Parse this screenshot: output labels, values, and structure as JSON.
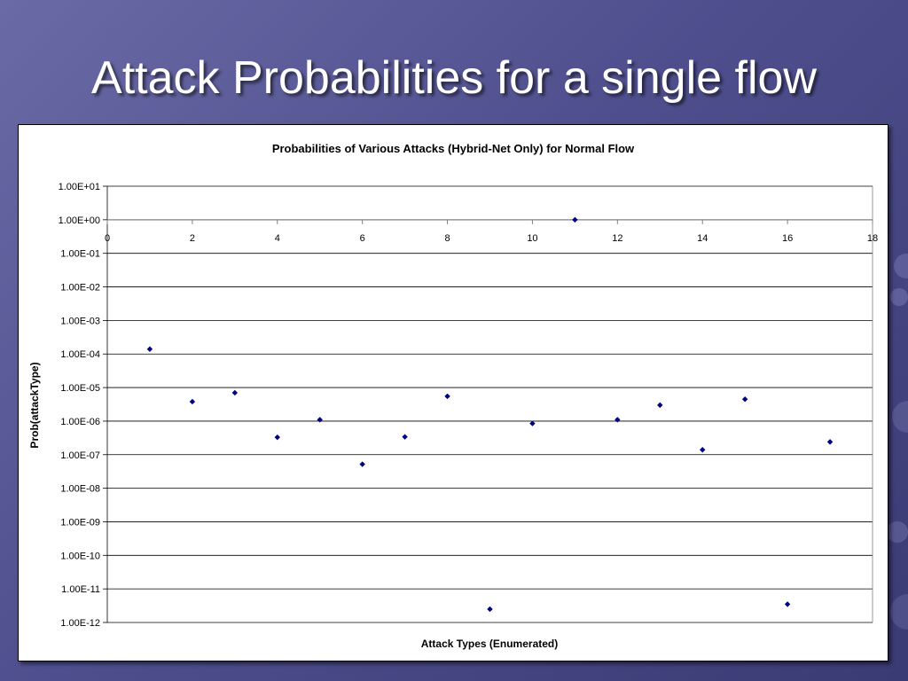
{
  "slide": {
    "title": "Attack Probabilities for a single flow"
  },
  "colors": {
    "marker": "#000080",
    "grid": "#000000"
  },
  "chart_data": {
    "type": "scatter",
    "title": "Probabilities of Various Attacks (Hybrid-Net Only) for Normal Flow",
    "xlabel": "Attack Types (Enumerated)",
    "ylabel": "Prob(attackType)",
    "xlim": [
      0,
      18
    ],
    "x_ticks": [
      "0",
      "2",
      "4",
      "6",
      "8",
      "10",
      "12",
      "14",
      "16",
      "18"
    ],
    "ylim": [
      1e-12,
      10
    ],
    "y_scale": "log",
    "y_ticks": [
      "1.00E+01",
      "1.00E+00",
      "1.00E-01",
      "1.00E-02",
      "1.00E-03",
      "1.00E-04",
      "1.00E-05",
      "1.00E-06",
      "1.00E-07",
      "1.00E-08",
      "1.00E-09",
      "1.00E-10",
      "1.00E-11",
      "1.00E-12"
    ],
    "grid": true,
    "legend": "none",
    "x": [
      1,
      2,
      3,
      4,
      5,
      6,
      7,
      8,
      9,
      10,
      11,
      12,
      13,
      14,
      15,
      16,
      17
    ],
    "y": [
      0.00014,
      3.8e-06,
      7e-06,
      3.3e-07,
      1.1e-06,
      5.2e-08,
      3.4e-07,
      5.5e-06,
      2.5e-12,
      8.5e-07,
      1.0,
      1.1e-06,
      3e-06,
      1.4e-07,
      4.5e-06,
      3.5e-12,
      2.4e-07
    ]
  }
}
